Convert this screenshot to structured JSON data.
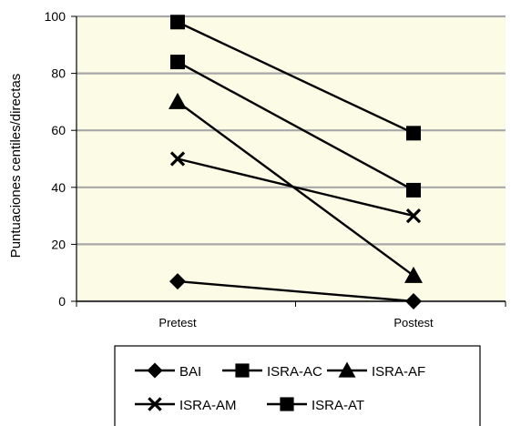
{
  "chart_data": {
    "type": "line",
    "title": "",
    "xlabel": "",
    "ylabel": "Puntuaciones centiles/directas",
    "categories": [
      "Pretest",
      "Postest"
    ],
    "ylim": [
      0,
      100
    ],
    "yticks": [
      0,
      20,
      40,
      60,
      80,
      100
    ],
    "grid": true,
    "plot_background": "#fcfbe6",
    "legend_position": "bottom",
    "series": [
      {
        "name": "BAI",
        "values": [
          7,
          0
        ],
        "marker": "diamond",
        "color": "#000000"
      },
      {
        "name": "ISRA-AC",
        "values": [
          84,
          39
        ],
        "marker": "square",
        "color": "#000000"
      },
      {
        "name": "ISRA-AF",
        "values": [
          70,
          9
        ],
        "marker": "triangle",
        "color": "#000000"
      },
      {
        "name": "ISRA-AM",
        "values": [
          50,
          30
        ],
        "marker": "x",
        "color": "#000000"
      },
      {
        "name": "ISRA-AT",
        "values": [
          98,
          59
        ],
        "marker": "square",
        "color": "#000000"
      }
    ]
  }
}
